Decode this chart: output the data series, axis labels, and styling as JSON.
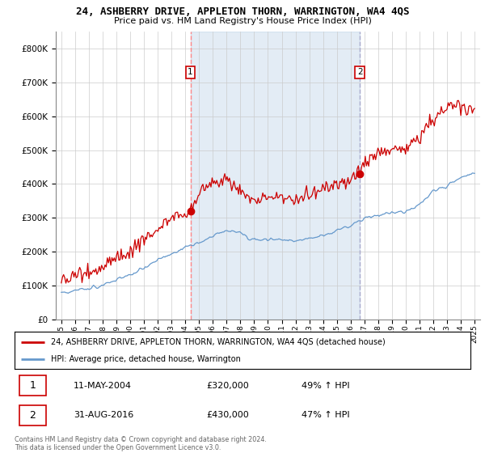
{
  "title1": "24, ASHBERRY DRIVE, APPLETON THORN, WARRINGTON, WA4 4QS",
  "title2": "Price paid vs. HM Land Registry's House Price Index (HPI)",
  "legend_label1": "24, ASHBERRY DRIVE, APPLETON THORN, WARRINGTON, WA4 4QS (detached house)",
  "legend_label2": "HPI: Average price, detached house, Warrington",
  "sale1_date": "11-MAY-2004",
  "sale1_price": "£320,000",
  "sale1_hpi": "49% ↑ HPI",
  "sale2_date": "31-AUG-2016",
  "sale2_price": "£430,000",
  "sale2_hpi": "47% ↑ HPI",
  "footer": "Contains HM Land Registry data © Crown copyright and database right 2024.\nThis data is licensed under the Open Government Licence v3.0.",
  "red_color": "#cc0000",
  "blue_color": "#6699cc",
  "vline1_color": "#ff8888",
  "vline2_color": "#aaaacc",
  "shade_color": "#ddeeff",
  "bg_color": "#ffffff",
  "grid_color": "#cccccc",
  "ylim": [
    0,
    850000
  ],
  "yticks": [
    0,
    100000,
    200000,
    300000,
    400000,
    500000,
    600000,
    700000,
    800000
  ],
  "sale1_x": 2004.37,
  "sale1_y": 320000,
  "sale2_x": 2016.67,
  "sale2_y": 430000,
  "xmin": 1995,
  "xmax": 2025
}
